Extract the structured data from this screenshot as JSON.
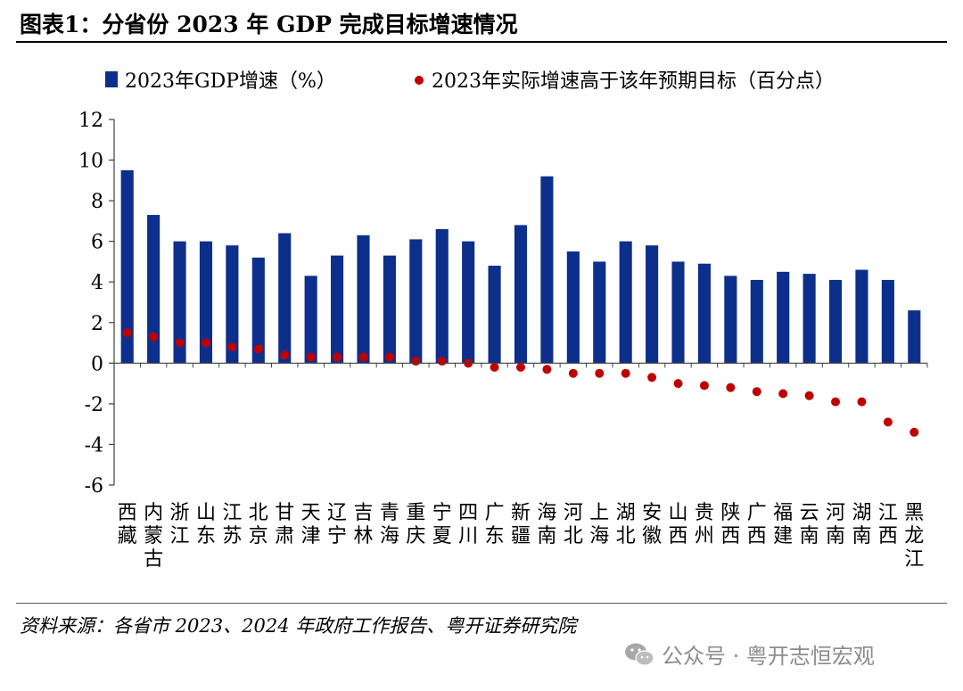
{
  "header": {
    "title": "图表1：分省份 2023 年 GDP 完成目标增速情况"
  },
  "footer": {
    "source": "资料来源：各省市 2023、2024 年政府工作报告、粤开证券研究院"
  },
  "watermark": {
    "text": "公众号 · 粤开志恒宏观",
    "icon": "wechat-icon"
  },
  "colors": {
    "bar": "#0d2f8c",
    "dot": "#c00000",
    "axis": "#404040",
    "text": "#000000"
  },
  "chart_data": {
    "type": "bar",
    "title": "分省份 2023 年 GDP 完成目标增速情况",
    "xlabel": "",
    "ylabel": "",
    "ylim": [
      -6,
      12
    ],
    "yticks": [
      -6,
      -4,
      -2,
      0,
      2,
      4,
      6,
      8,
      10,
      12
    ],
    "grid": false,
    "legend_position": "top",
    "categories": [
      "西藏",
      "内蒙古",
      "浙江",
      "山东",
      "江苏",
      "北京",
      "甘肃",
      "天津",
      "辽宁",
      "吉林",
      "青海",
      "重庆",
      "宁夏",
      "四川",
      "广东",
      "新疆",
      "海南",
      "河北",
      "上海",
      "湖北",
      "安徽",
      "山西",
      "贵州",
      "陕西",
      "广西",
      "福建",
      "云南",
      "河南",
      "湖南",
      "江西",
      "黑龙江"
    ],
    "series": [
      {
        "name": "2023年GDP增速（%）",
        "kind": "bar",
        "values": [
          9.5,
          7.3,
          6.0,
          6.0,
          5.8,
          5.2,
          6.4,
          4.3,
          5.3,
          6.3,
          5.3,
          6.1,
          6.6,
          6.0,
          4.8,
          6.8,
          9.2,
          5.5,
          5.0,
          6.0,
          5.8,
          5.0,
          4.9,
          4.3,
          4.1,
          4.5,
          4.4,
          4.1,
          4.6,
          4.1,
          2.6
        ]
      },
      {
        "name": "2023年实际增速高于该年预期目标（百分点）",
        "kind": "scatter",
        "values": [
          1.5,
          1.3,
          1.0,
          1.0,
          0.8,
          0.7,
          0.4,
          0.3,
          0.3,
          0.3,
          0.3,
          0.1,
          0.1,
          0.0,
          -0.2,
          -0.2,
          -0.3,
          -0.5,
          -0.5,
          -0.5,
          -0.7,
          -1.0,
          -1.1,
          -1.2,
          -1.4,
          -1.5,
          -1.6,
          -1.9,
          -1.9,
          -2.9,
          -3.4
        ]
      }
    ]
  }
}
